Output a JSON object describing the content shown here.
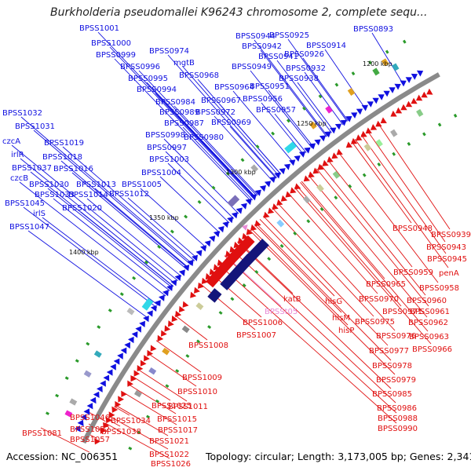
{
  "title": "Burkholderia pseudomallei K96243 chromosome 2, complete sequ...",
  "footer": {
    "accession": "Accession: NC_006351",
    "summary": "Topology: circular; Length: 3,173,005 bp; Genes: 2,341"
  },
  "colors": {
    "forward": "#1010e0",
    "reverse": "#e01010",
    "rna": "#e98bd6",
    "backbone": "#8a8a8a",
    "dark_block": "#14147a",
    "cyan_block": "#30d8e8"
  },
  "kbp_labels": [
    "1200 kbp",
    "1250 kbp",
    "1300 kbp",
    "1350 kbp",
    "1400 kbp"
  ],
  "forward_genes": [
    "BPSS0893",
    "BPSS0914",
    "BPSS0925",
    "BPSS0926",
    "BPSS0932",
    "BPSS0938",
    "BPSS0941",
    "BPSS0942",
    "BPSS0944",
    "BPSS0949",
    "BPSS0951",
    "BPSS0956",
    "BPSS0957",
    "BPSS0964",
    "BPSS0967",
    "BPSS0968",
    "BPSS0969",
    "BPSS0972",
    "BPSS0974",
    "mgtB",
    "BPSS0980",
    "BPSS0984",
    "BPSS0987",
    "BPSS0989",
    "BPSS0994",
    "BPSS0995",
    "BPSS0996",
    "BPSS0997",
    "BPSS0998",
    "BPSS0999",
    "BPSS1000",
    "BPSS1001",
    "BPSS1003",
    "BPSS1004",
    "BPSS1005",
    "BPSS1012",
    "BPSS1013",
    "BPSS1014",
    "BPSS1016",
    "BPSS1018",
    "BPSS1019",
    "BPSS1020",
    "BPSS1030",
    "BPSS1031",
    "BPSS1032",
    "BPSS1033",
    "BPSS1037",
    "BPSS1045",
    "BPSS1047",
    "czcA",
    "irlR",
    "czcB",
    "irlS"
  ],
  "reverse_genes": [
    "BPSS0939",
    "BPSS0943",
    "BPSS0945",
    "BPSS0948",
    "penA",
    "BPSS0958",
    "BPSS0959",
    "BPSS0960",
    "BPSS0961",
    "BPSS0962",
    "BPSS0963",
    "BPSS0965",
    "BPSS0966",
    "BPSS0970",
    "BPSS0971",
    "BPSS0975",
    "BPSS0976",
    "BPSS0977",
    "BPSS0978",
    "BPSS0979",
    "BPSS0985",
    "BPSS0986",
    "BPSS0988",
    "BPSS0990",
    "hisG",
    "hisM",
    "hisP",
    "katB",
    "BPSS1006",
    "BPSS1007",
    "BPSS1008",
    "BPSS1009",
    "BPSS1010",
    "BPSS1011",
    "BPSS1015",
    "BPSS1017",
    "BPSS1021",
    "BPSS1022",
    "BPSS1025",
    "BPSS1026",
    "BPSS1034",
    "BPSS1038",
    "BPSS1046",
    "BPSS1052",
    "BPSS1057",
    "BPSS1081"
  ],
  "rna_genes": [
    "BPSSt05"
  ]
}
